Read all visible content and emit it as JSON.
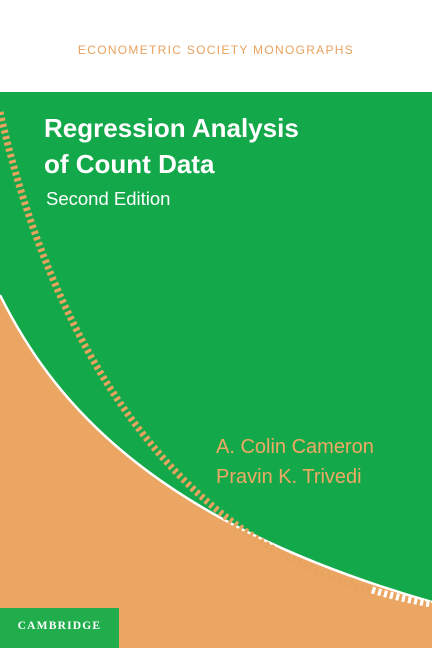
{
  "cover": {
    "series": "ECONOMETRIC SOCIETY MONOGRAPHS",
    "title_line1": "Regression Analysis",
    "title_line2": "of Count Data",
    "edition": "Second Edition",
    "author1": "A. Colin Cameron",
    "author2": "Pravin K. Trivedi",
    "publisher": "CAMBRIDGE"
  },
  "colors": {
    "green": "#13a84a",
    "orange": "#eba663",
    "dots": "#e8a45f",
    "white": "#ffffff"
  }
}
